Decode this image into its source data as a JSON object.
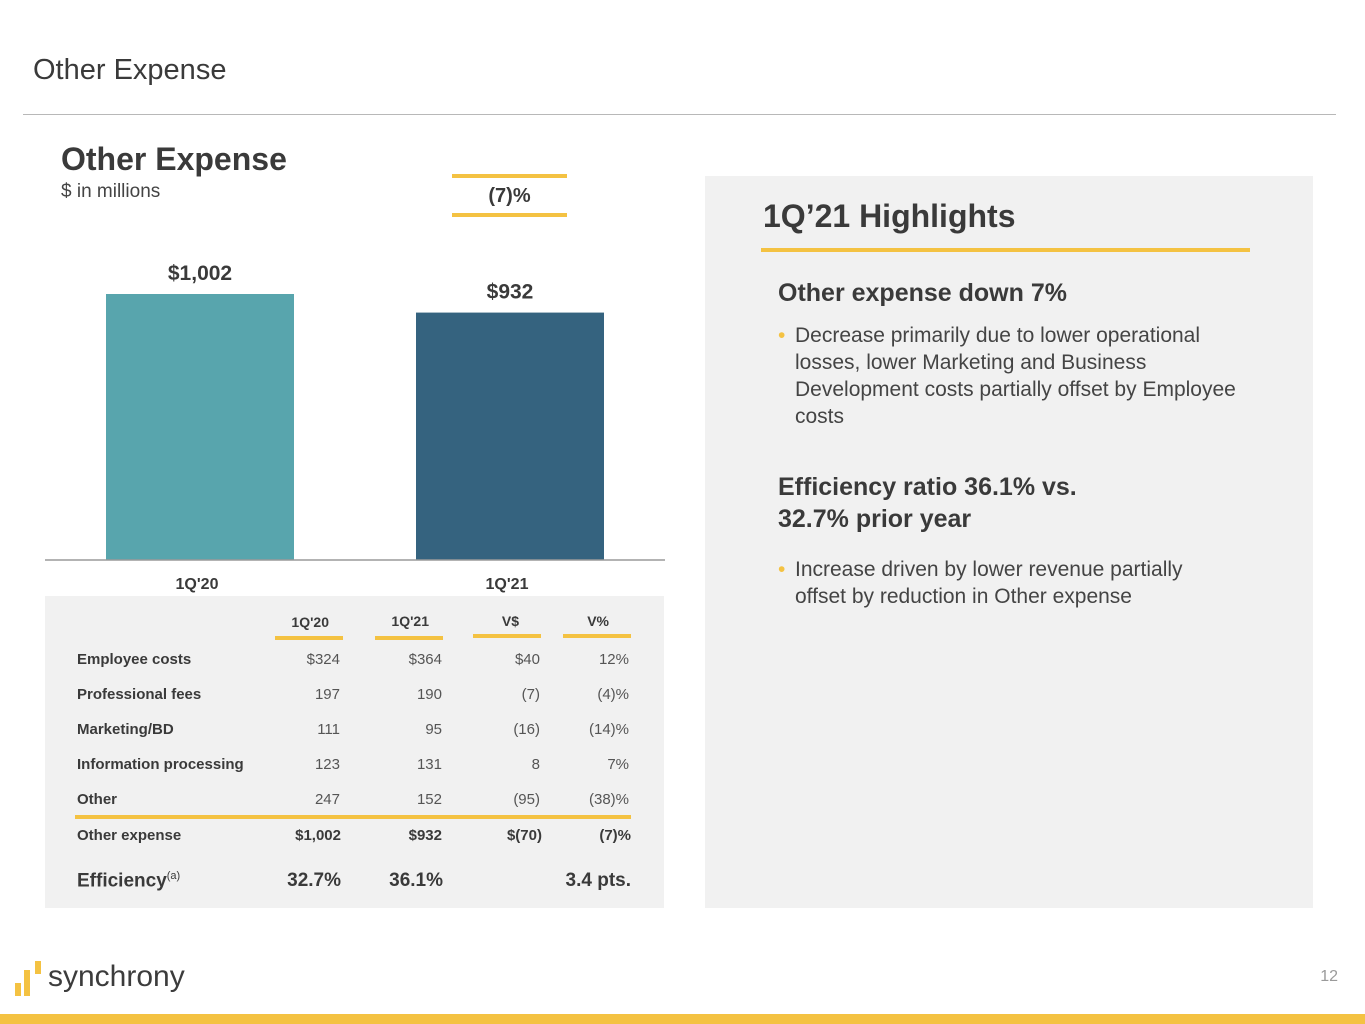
{
  "page": {
    "title": "Other Expense",
    "page_number": "12"
  },
  "chart": {
    "title": "Other Expense",
    "subtitle": "$ in millions",
    "change_label": "(7)%"
  },
  "chart_data": {
    "type": "bar",
    "categories": [
      "1Q'20",
      "1Q'21"
    ],
    "values": [
      1002,
      932
    ],
    "value_labels": [
      "$1,002",
      "$932"
    ],
    "colors": [
      "#58a5ad",
      "#35637f"
    ],
    "ylim": [
      0,
      1002
    ],
    "grid": false,
    "title": "",
    "xlabel": "",
    "ylabel": ""
  },
  "table": {
    "headers": [
      "1Q'20",
      "1Q'21",
      "V$",
      "V%"
    ],
    "rows": [
      {
        "label": "Employee costs",
        "values": [
          "$324",
          "$364",
          "$40",
          "12%"
        ]
      },
      {
        "label": "Professional fees",
        "values": [
          "197",
          "190",
          "(7)",
          "(4)%"
        ]
      },
      {
        "label": "Marketing/BD",
        "values": [
          "111",
          "95",
          "(16)",
          "(14)%"
        ]
      },
      {
        "label": "Information processing",
        "values": [
          "123",
          "131",
          "8",
          "7%"
        ]
      },
      {
        "label": "Other",
        "values": [
          "247",
          "152",
          "(95)",
          "(38)%"
        ]
      }
    ],
    "total": {
      "label": "Other expense",
      "values": [
        "$1,002",
        "$932",
        "$(70)",
        "(7)%"
      ]
    },
    "efficiency": {
      "label": "Efficiency",
      "footnote": "(a)",
      "values": [
        "32.7%",
        "36.1%",
        "",
        "3.4 pts."
      ]
    }
  },
  "highlights": {
    "title": "1Q’21 Highlights",
    "sections": [
      {
        "heading": "Other expense down 7%",
        "bullet": "Decrease primarily due to lower operational losses, lower Marketing and Business Development costs partially offset by Employee costs"
      },
      {
        "heading": "Efficiency ratio 36.1% vs. 32.7% prior year",
        "bullet": "Increase driven by lower revenue partially offset by reduction in Other expense"
      }
    ]
  },
  "footer": {
    "logo_text": "synchrony",
    "brand_color": "#f4c242"
  }
}
